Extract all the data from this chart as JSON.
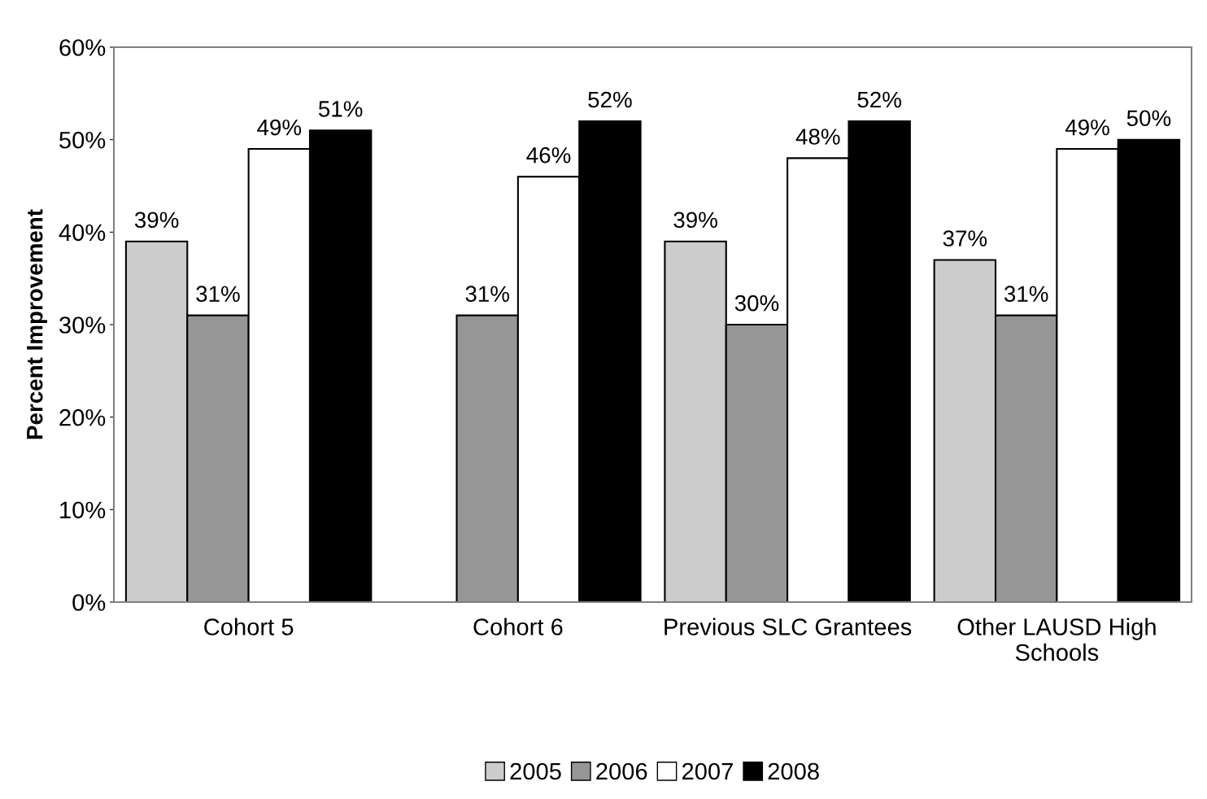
{
  "chart_data": {
    "type": "bar",
    "ylabel": "Percent Improvement",
    "categories": [
      "Cohort 5",
      "Cohort 6",
      "Previous SLC Grantees",
      "Other LAUSD High\nSchools"
    ],
    "series": [
      {
        "name": "2005",
        "color": "#cccccc",
        "values": [
          39,
          null,
          39,
          37
        ],
        "value_labels": [
          "39%",
          null,
          "39%",
          "37%"
        ]
      },
      {
        "name": "2006",
        "color": "#969696",
        "values": [
          31,
          31,
          30,
          31
        ],
        "value_labels": [
          "31%",
          "31%",
          "30%",
          "31%"
        ]
      },
      {
        "name": "2007",
        "color": "#ffffff",
        "values": [
          49,
          46,
          48,
          49
        ],
        "value_labels": [
          "49%",
          "46%",
          "48%",
          "49%"
        ]
      },
      {
        "name": "2008",
        "color": "#000000",
        "values": [
          51,
          52,
          52,
          50
        ],
        "value_labels": [
          "51%",
          "52%",
          "52%",
          "50%"
        ]
      }
    ],
    "ylim": [
      0,
      60
    ],
    "yticks": [
      {
        "value": 0,
        "label": "0%"
      },
      {
        "value": 10,
        "label": "10%"
      },
      {
        "value": 20,
        "label": "20%"
      },
      {
        "value": 30,
        "label": "30%"
      },
      {
        "value": 40,
        "label": "40%"
      },
      {
        "value": 50,
        "label": "50%"
      },
      {
        "value": 60,
        "label": "60%"
      }
    ],
    "grid": false,
    "legend": "bottom"
  }
}
